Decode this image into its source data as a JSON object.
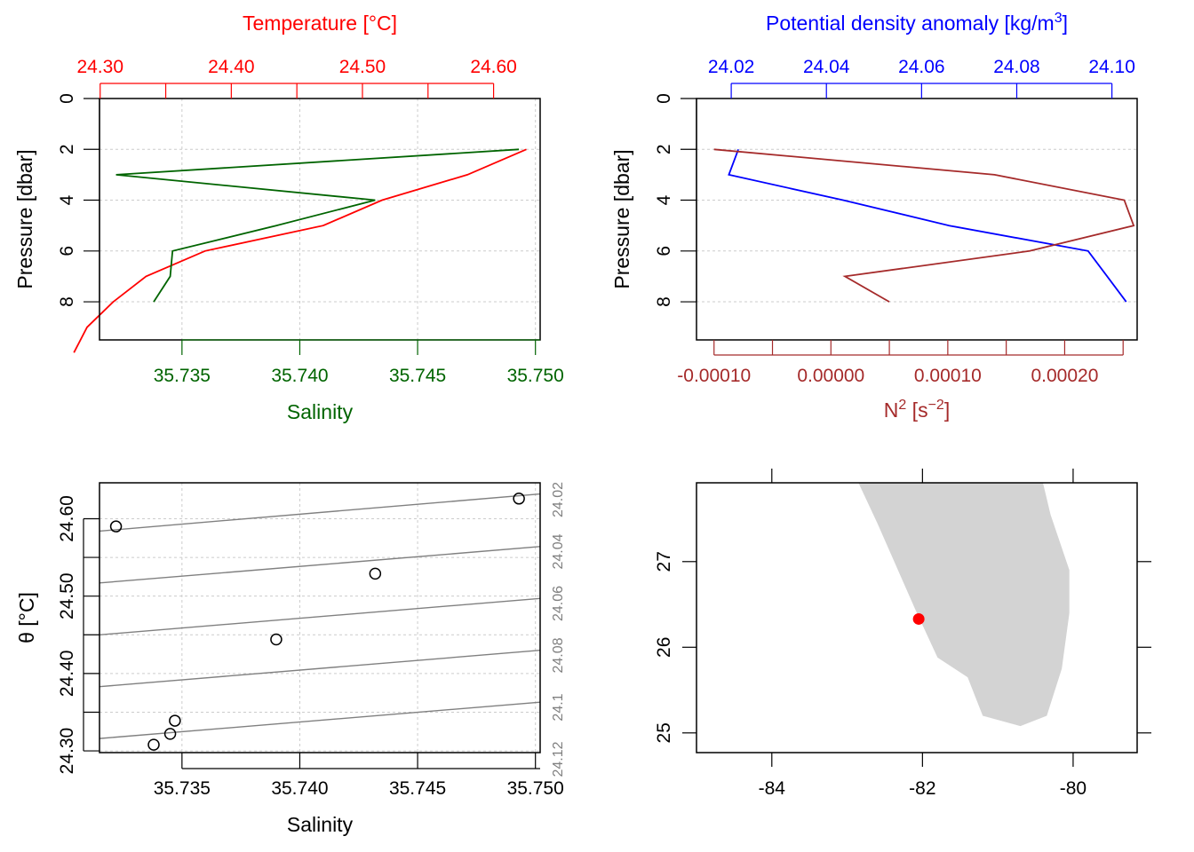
{
  "chart_data": [
    {
      "type": "line",
      "panel": "temperature-salinity-profile",
      "top_axis_title": "Temperature [°C]",
      "top_axis_ticks": [
        "24.30",
        "24.40",
        "24.50",
        "24.60"
      ],
      "bottom_axis_title": "Salinity",
      "bottom_axis_ticks": [
        "35.735",
        "35.740",
        "35.745",
        "35.750"
      ],
      "ylabel": "Pressure [dbar]",
      "y_ticks": [
        "0",
        "2",
        "4",
        "6",
        "8"
      ],
      "xlim_salinity": [
        35.7315,
        35.7502
      ],
      "xlim_temperature": [
        24.2995,
        24.6355
      ],
      "ylim": [
        9.5,
        0
      ],
      "grid": true,
      "colors": {
        "temperature": "#ff0000",
        "salinity": "#006400"
      },
      "series": [
        {
          "color_key": "temperature",
          "x": [
            24.625,
            24.58,
            24.515,
            24.47,
            24.38,
            24.335,
            24.31,
            24.29,
            24.28
          ],
          "y": [
            2,
            3,
            4,
            5,
            6,
            7,
            8,
            9,
            10
          ]
        },
        {
          "color_key": "salinity",
          "x": [
            35.7493,
            35.7322,
            35.7432,
            35.739,
            35.7346,
            35.7345,
            35.7338
          ],
          "y": [
            2,
            3,
            4,
            5,
            6,
            7,
            8
          ]
        }
      ]
    },
    {
      "type": "line",
      "panel": "density-n2-profile",
      "top_axis_title": "Potential density anomaly [kg/m",
      "top_axis_title_sup": "3",
      "top_axis_title_end": "]",
      "top_axis_ticks": [
        "24.02",
        "24.04",
        "24.06",
        "24.08",
        "24.10"
      ],
      "bottom_axis_title": "N",
      "bottom_axis_title_sup": "2",
      "bottom_axis_title_mid": " [s",
      "bottom_axis_title_sup2": "−2",
      "bottom_axis_title_end": "]",
      "bottom_axis_ticks": [
        "-0.00010",
        "0.00000",
        "0.00010",
        "0.00020"
      ],
      "ylabel": "Pressure [dbar]",
      "y_ticks": [
        "0",
        "2",
        "4",
        "6",
        "8"
      ],
      "xlim_density": [
        24.0127,
        24.1053
      ],
      "xlim_n2": [
        -0.000115,
        0.000262
      ],
      "ylim": [
        9.5,
        0
      ],
      "grid": true,
      "colors": {
        "density": "#0000ff",
        "n2": "#a52a2a"
      },
      "series": [
        {
          "color_key": "density",
          "x": [
            24.0215,
            24.0195,
            24.0435,
            24.0658,
            24.095,
            24.099,
            24.103
          ],
          "y": [
            2,
            3,
            4,
            5,
            6,
            7,
            8
          ]
        },
        {
          "color_key": "n2",
          "x": [
            -0.0001,
            0.00014,
            0.000251,
            0.000259,
            0.00017,
            1.2e-05,
            5e-05
          ],
          "y": [
            2,
            3,
            4,
            5,
            6,
            7,
            8
          ]
        }
      ]
    },
    {
      "type": "scatter",
      "panel": "ts-diagram",
      "xlabel": "Salinity",
      "ylabel": "θ [°C]",
      "x_ticks": [
        "35.735",
        "35.740",
        "35.745",
        "35.750"
      ],
      "y_ticks": [
        "24.30",
        "24.40",
        "24.50",
        "24.60"
      ],
      "xlim": [
        35.7315,
        35.7502
      ],
      "ylim": [
        24.2978,
        24.6464
      ],
      "grid": true,
      "points": [
        {
          "s": 35.7322,
          "t": 24.59
        },
        {
          "s": 35.7493,
          "t": 24.626
        },
        {
          "s": 35.7432,
          "t": 24.529
        },
        {
          "s": 35.739,
          "t": 24.444
        },
        {
          "s": 35.7347,
          "t": 24.339
        },
        {
          "s": 35.7345,
          "t": 24.322
        },
        {
          "s": 35.7338,
          "t": 24.308
        }
      ],
      "isopycnal_labels": [
        "24.02",
        "24.04",
        "24.06",
        "24.08",
        "24.1",
        "24.12"
      ],
      "isopycnal_lines": [
        {
          "t_left": 24.584,
          "t_right": 24.632
        },
        {
          "t_left": 24.517,
          "t_right": 24.564
        },
        {
          "t_left": 24.45,
          "t_right": 24.497
        },
        {
          "t_left": 24.383,
          "t_right": 24.43
        },
        {
          "t_left": 24.316,
          "t_right": 24.363
        }
      ]
    },
    {
      "type": "map",
      "panel": "location-map",
      "x_ticks": [
        "-84",
        "-82",
        "-80"
      ],
      "y_ticks": [
        "25",
        "26",
        "27"
      ],
      "xlim": [
        -85.0,
        -79.15
      ],
      "ylim": [
        24.77,
        27.92
      ],
      "land_color": "#d3d3d3",
      "station": {
        "lon": -82.05,
        "lat": 26.33,
        "color": "#ff0000"
      },
      "coastline": [
        [
          -82.85,
          27.92
        ],
        [
          -82.6,
          27.45
        ],
        [
          -82.35,
          26.95
        ],
        [
          -82.1,
          26.45
        ],
        [
          -81.8,
          25.88
        ],
        [
          -81.4,
          25.65
        ],
        [
          -81.2,
          25.2
        ],
        [
          -80.7,
          25.08
        ],
        [
          -80.35,
          25.2
        ],
        [
          -80.15,
          25.75
        ],
        [
          -80.05,
          26.4
        ],
        [
          -80.05,
          26.9
        ],
        [
          -80.3,
          27.55
        ],
        [
          -80.4,
          27.92
        ]
      ]
    }
  ]
}
